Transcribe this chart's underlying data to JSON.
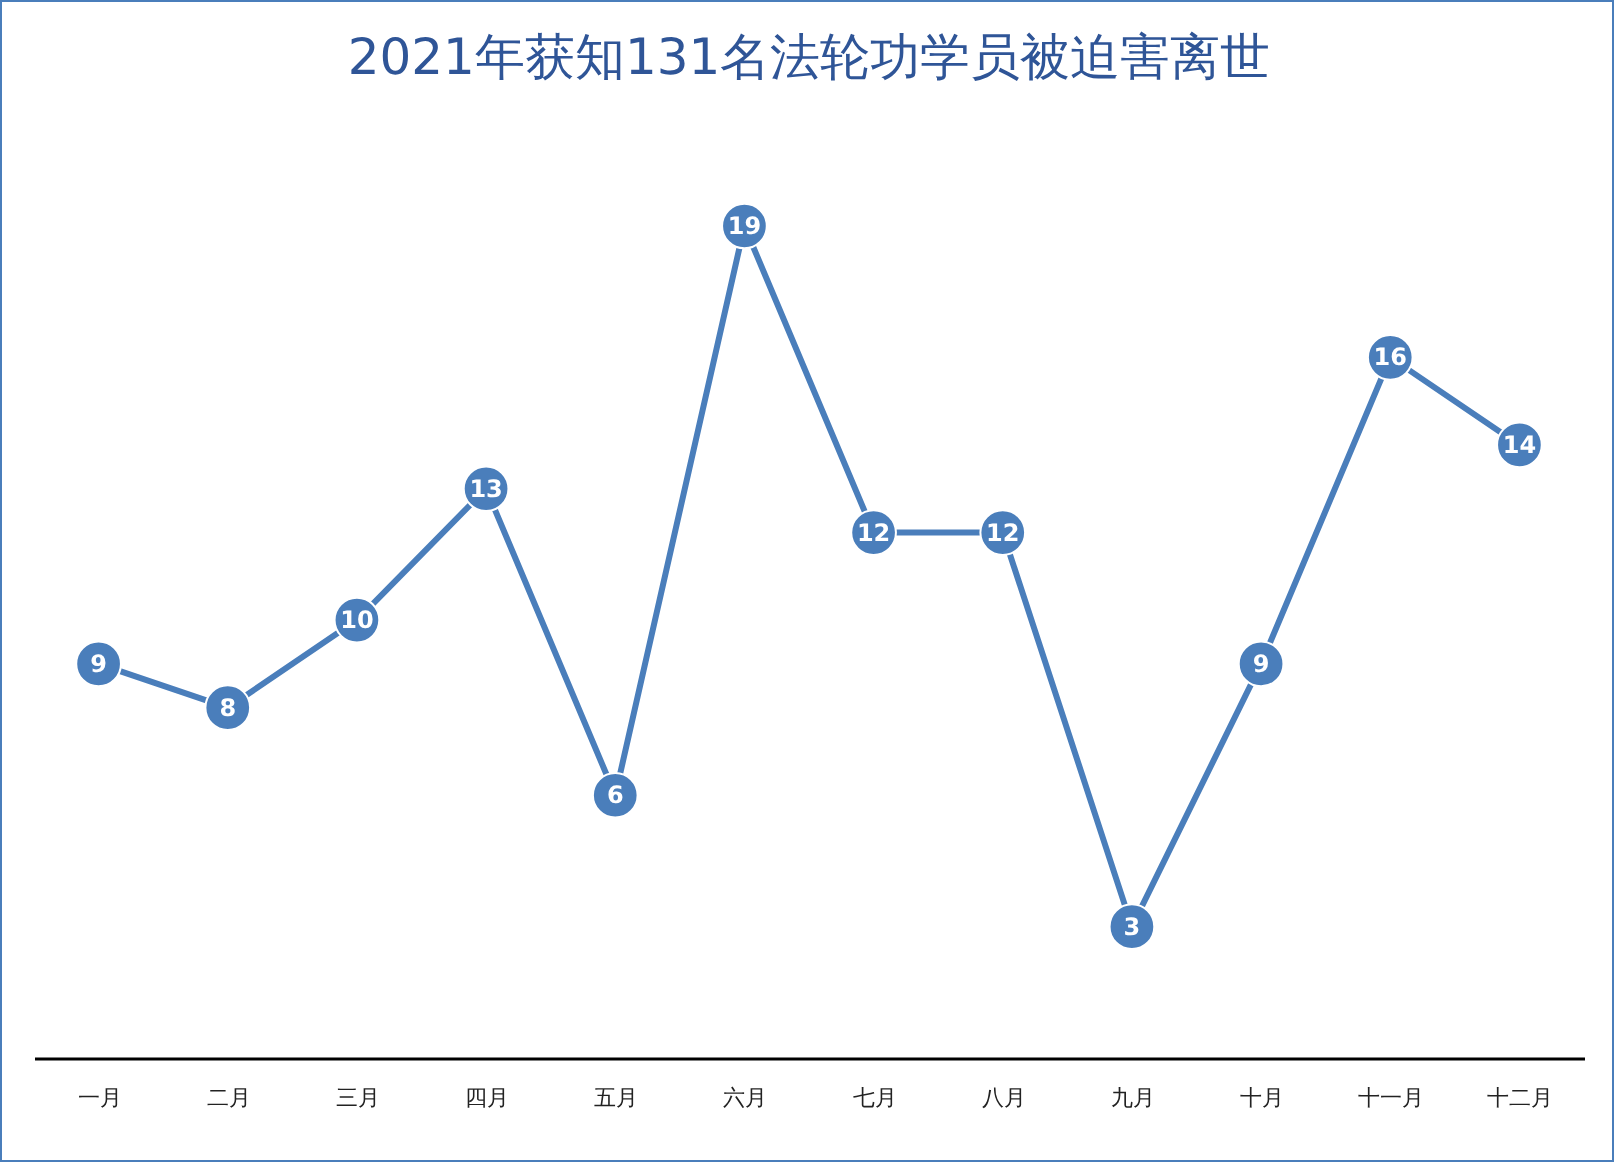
{
  "chart_data": {
    "type": "line",
    "title": "2021年获知131名法轮功学员被迫害离世",
    "categories": [
      "一月",
      "二月",
      "三月",
      "四月",
      "五月",
      "六月",
      "七月",
      "八月",
      "九月",
      "十月",
      "十一月",
      "十二月"
    ],
    "series": [
      {
        "color": "#4a7ebb",
        "values": [
          9,
          8,
          10,
          13,
          6,
          19,
          12,
          12,
          3,
          9,
          16,
          14
        ]
      }
    ],
    "tick_labels": "x",
    "data_labels": true,
    "marker": "circle",
    "line_style": "solid",
    "grid": false
  }
}
